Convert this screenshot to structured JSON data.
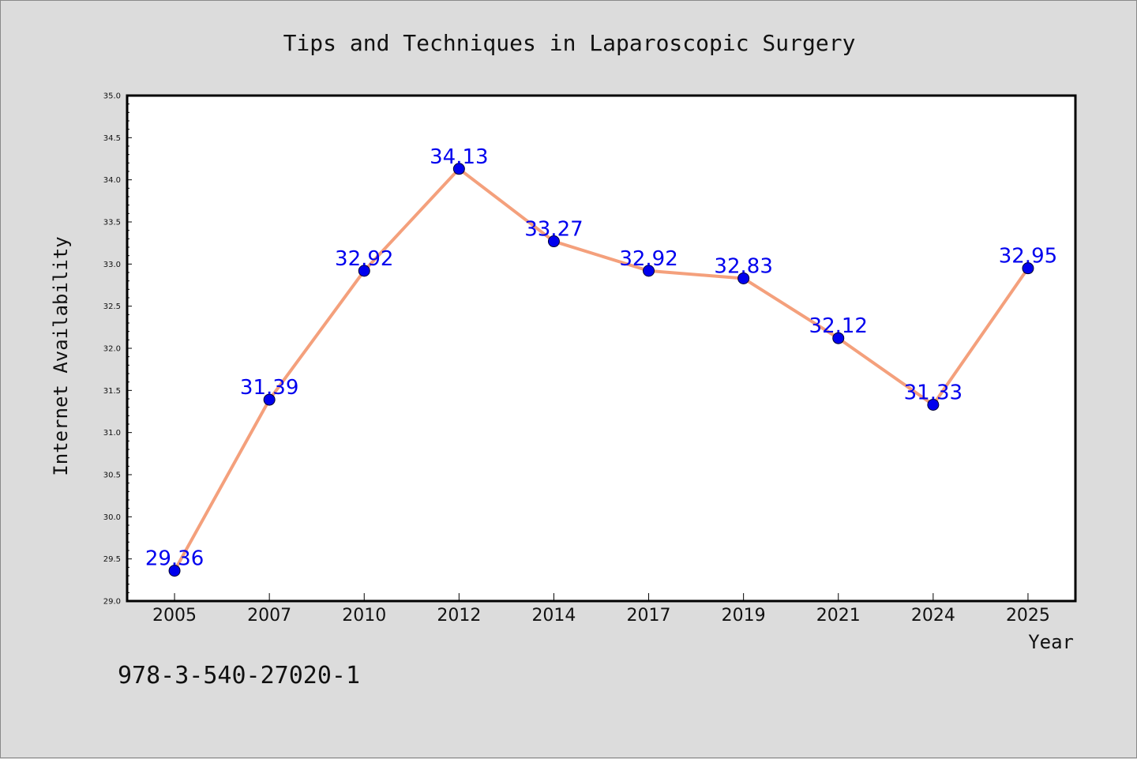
{
  "chart_data": {
    "type": "line",
    "title": "Tips and Techniques in Laparoscopic Surgery",
    "xlabel": "Year",
    "ylabel": "Internet Availability",
    "categories": [
      "2005",
      "2007",
      "2010",
      "2012",
      "2014",
      "2017",
      "2019",
      "2021",
      "2024",
      "2025"
    ],
    "series": [
      {
        "values": [
          29.36,
          31.39,
          32.92,
          34.13,
          33.27,
          32.92,
          32.83,
          32.12,
          31.33,
          32.95
        ],
        "line_color": "#f4a07c",
        "marker_color": "#0000ee"
      }
    ],
    "ylim": [
      29.0,
      35.0
    ],
    "yticks": [
      "29.0",
      "29.5",
      "30.0",
      "30.5",
      "31.0",
      "31.5",
      "32.0",
      "32.5",
      "33.0",
      "33.5",
      "34.0",
      "34.5",
      "35.0"
    ],
    "data_labels": [
      "29.36",
      "31.39",
      "32.92",
      "34.13",
      "33.27",
      "32.92",
      "32.83",
      "32.12",
      "31.33",
      "32.95"
    ],
    "grid": false,
    "legend": "none"
  },
  "annotation": {
    "isbn": "978-3-540-27020-1"
  },
  "colors": {
    "background": "#dcdcdc",
    "plot_background": "#ffffff",
    "line": "#f4a07c",
    "marker": "#0000ee",
    "data_label": "#0000ee"
  }
}
